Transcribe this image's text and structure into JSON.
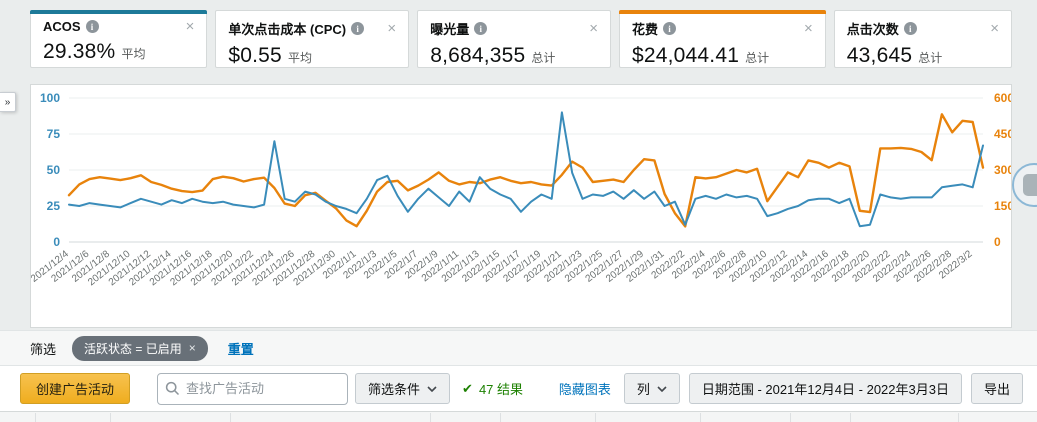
{
  "metric_cards": [
    {
      "label": "ACOS",
      "value": "29.38%",
      "unit": "平均",
      "accent": "#1d7a99",
      "close": "×"
    },
    {
      "label": "单次点击成本 (CPC)",
      "value": "$0.55",
      "unit": "平均",
      "accent": null,
      "close": "×"
    },
    {
      "label": "曝光量",
      "value": "8,684,355",
      "unit": "总计",
      "accent": null,
      "close": "×"
    },
    {
      "label": "花费",
      "value": "$24,044.41",
      "unit": "总计",
      "accent": "#e8830c",
      "close": "×"
    },
    {
      "label": "点击次数",
      "value": "43,645",
      "unit": "总计",
      "accent": null,
      "close": "×"
    }
  ],
  "chart_data": {
    "type": "line",
    "x_label_every": 2,
    "x": [
      "2021/12/4",
      "2021/12/5",
      "2021/12/6",
      "2021/12/7",
      "2021/12/8",
      "2021/12/9",
      "2021/12/10",
      "2021/12/11",
      "2021/12/12",
      "2021/12/13",
      "2021/12/14",
      "2021/12/15",
      "2021/12/16",
      "2021/12/17",
      "2021/12/18",
      "2021/12/19",
      "2021/12/20",
      "2021/12/21",
      "2021/12/22",
      "2021/12/23",
      "2021/12/24",
      "2021/12/25",
      "2021/12/26",
      "2021/12/27",
      "2021/12/28",
      "2021/12/29",
      "2021/12/30",
      "2021/12/31",
      "2022/1/1",
      "2022/1/2",
      "2022/1/3",
      "2022/1/4",
      "2022/1/5",
      "2022/1/6",
      "2022/1/7",
      "2022/1/8",
      "2022/1/9",
      "2022/1/10",
      "2022/1/11",
      "2022/1/12",
      "2022/1/13",
      "2022/1/14",
      "2022/1/15",
      "2022/1/16",
      "2022/1/17",
      "2022/1/18",
      "2022/1/19",
      "2022/1/20",
      "2022/1/21",
      "2022/1/22",
      "2022/1/23",
      "2022/1/24",
      "2022/1/25",
      "2022/1/26",
      "2022/1/27",
      "2022/1/28",
      "2022/1/29",
      "2022/1/30",
      "2022/1/31",
      "2022/2/1",
      "2022/2/2",
      "2022/2/3",
      "2022/2/4",
      "2022/2/5",
      "2022/2/6",
      "2022/2/7",
      "2022/2/8",
      "2022/2/9",
      "2022/2/10",
      "2022/2/11",
      "2022/2/12",
      "2022/2/13",
      "2022/2/14",
      "2022/2/15",
      "2022/2/16",
      "2022/2/17",
      "2022/2/18",
      "2022/2/19",
      "2022/2/20",
      "2022/2/21",
      "2022/2/22",
      "2022/2/23",
      "2022/2/24",
      "2022/2/25",
      "2022/2/26",
      "2022/2/27",
      "2022/2/28",
      "2022/3/1",
      "2022/3/2",
      "2022/3/3"
    ],
    "left_axis": {
      "label": "ACOS",
      "min": 0,
      "max": 100,
      "ticks": [
        0,
        25,
        50,
        75,
        100
      ],
      "color": "#3a8cba"
    },
    "right_axis": {
      "label": "花费",
      "min": 0,
      "max": 600,
      "ticks": [
        0,
        150,
        300,
        450,
        600
      ],
      "color": "#e8830c"
    },
    "grid": true,
    "legend": "none",
    "series": [
      {
        "name": "花费",
        "axis": "right",
        "color": "#e8830c",
        "width": 2.4,
        "values": [
          195,
          240,
          262,
          270,
          264,
          258,
          266,
          278,
          250,
          238,
          222,
          212,
          208,
          214,
          262,
          272,
          266,
          252,
          262,
          268,
          225,
          160,
          150,
          195,
          205,
          172,
          140,
          90,
          66,
          130,
          210,
          250,
          255,
          215,
          235,
          260,
          290,
          255,
          240,
          250,
          245,
          260,
          270,
          255,
          245,
          250,
          240,
          235,
          280,
          335,
          310,
          250,
          255,
          260,
          250,
          300,
          345,
          340,
          200,
          120,
          65,
          270,
          265,
          270,
          285,
          300,
          290,
          305,
          170,
          230,
          290,
          270,
          340,
          330,
          310,
          330,
          315,
          130,
          125,
          390,
          390,
          392,
          388,
          375,
          341,
          532,
          457,
          505,
          500,
          310
        ]
      },
      {
        "name": "ACOS",
        "axis": "left",
        "color": "#3a8cba",
        "width": 2,
        "values": [
          26,
          25,
          27,
          26,
          25,
          24,
          27,
          30,
          28,
          26,
          29,
          27,
          30,
          28,
          27,
          28,
          26,
          25,
          24,
          26,
          70,
          30,
          28,
          35,
          33,
          28,
          25,
          23,
          20,
          30,
          43,
          46,
          32,
          21,
          30,
          37,
          31,
          25,
          35,
          28,
          45,
          37,
          33,
          30,
          21,
          28,
          33,
          30,
          90,
          48,
          30,
          33,
          32,
          35,
          30,
          36,
          30,
          35,
          25,
          28,
          12,
          30,
          32,
          30,
          33,
          31,
          32,
          30,
          18,
          20,
          23,
          25,
          29,
          30,
          30,
          27,
          30,
          11,
          12,
          33,
          31,
          30,
          31,
          31,
          31,
          38,
          39,
          40,
          38,
          67
        ]
      }
    ]
  },
  "filter_bar": {
    "label": "筛选",
    "chip": "活跃状态 = 已启用",
    "chip_close": "×",
    "reset": "重置"
  },
  "toolbar": {
    "create_button": "创建广告活动",
    "search_placeholder": "查找广告活动",
    "filters_button": "筛选条件",
    "results_icon": "✔",
    "results_text": "47 结果",
    "hide_chart": "隐藏图表",
    "columns_button": "列",
    "date_range_button": "日期范围 - 2021年12月4日 - 2022年3月3日",
    "export_button": "导出"
  },
  "misc": {
    "expand_icon": "»"
  }
}
